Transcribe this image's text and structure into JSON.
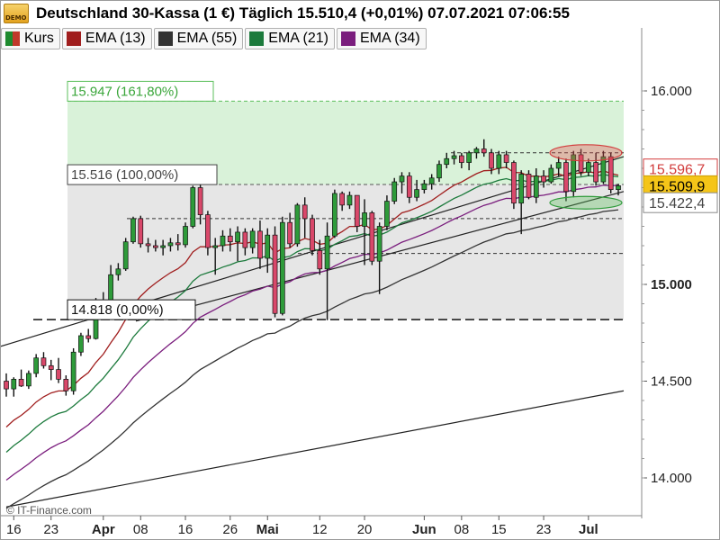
{
  "header": {
    "title": "Deutschland 30-Kassa (1 €) Täglich 15.510,4 (+0,01%) 07.07.2021 07:06:55",
    "badge_icon": "demo-icon"
  },
  "legend": [
    {
      "label": "Kurs",
      "color": "#c0392b",
      "color2": "#1e8a2e"
    },
    {
      "label": "EMA (13)",
      "color": "#a01e1e"
    },
    {
      "label": "EMA (55)",
      "color": "#333333"
    },
    {
      "label": "EMA (21)",
      "color": "#1c7a3c"
    },
    {
      "label": "EMA (34)",
      "color": "#7a1d7d"
    }
  ],
  "watermark": "© IT-Finance.com",
  "fib_levels": [
    {
      "label": "15.947 (161,80%)",
      "value": 15947,
      "color": "#5bbf5b"
    },
    {
      "label": "15.516 (100,00%)",
      "value": 15516,
      "color": "#444444"
    },
    {
      "label": "14.818 (0,00%)",
      "value": 14818,
      "color": "#111111"
    }
  ],
  "price_labels": [
    {
      "text": "15.596,7",
      "value": 15596.7,
      "bg": "#ffffff",
      "color": "#d23c3c",
      "border": "#d23c3c"
    },
    {
      "text": "15.509,9",
      "value": 15509.9,
      "bg": "#f5c518",
      "color": "#000000",
      "border": "#c89b00"
    },
    {
      "text": "15.422,4",
      "value": 15422.4,
      "bg": "#ffffff",
      "color": "#444444",
      "border": "#888888"
    }
  ],
  "chart_data": {
    "type": "candlestick",
    "title": "Deutschland 30-Kassa (1 €) Täglich",
    "ylim": [
      13920,
      16100
    ],
    "y_ticks": [
      {
        "label": "16.000",
        "value": 16000,
        "bold": false
      },
      {
        "label": "15.000",
        "value": 15000,
        "bold": true
      },
      {
        "label": "14.500",
        "value": 14500,
        "bold": false
      },
      {
        "label": "14.000",
        "value": 14000,
        "bold": false
      }
    ],
    "x_ticks": [
      {
        "label": "16",
        "index": 1,
        "month": false
      },
      {
        "label": "23",
        "index": 6,
        "month": false
      },
      {
        "label": "Apr",
        "index": 13,
        "month": true
      },
      {
        "label": "08",
        "index": 18,
        "month": false
      },
      {
        "label": "16",
        "index": 24,
        "month": false
      },
      {
        "label": "26",
        "index": 30,
        "month": false
      },
      {
        "label": "Mai",
        "index": 35,
        "month": true
      },
      {
        "label": "12",
        "index": 42,
        "month": false
      },
      {
        "label": "20",
        "index": 48,
        "month": false
      },
      {
        "label": "Jun",
        "index": 56,
        "month": true
      },
      {
        "label": "08",
        "index": 61,
        "month": false
      },
      {
        "label": "15",
        "index": 66,
        "month": false
      },
      {
        "label": "23",
        "index": 72,
        "month": false
      },
      {
        "label": "Jul",
        "index": 78,
        "month": true
      }
    ],
    "candles": [
      [
        14500,
        14540,
        14420,
        14460
      ],
      [
        14460,
        14520,
        14420,
        14510
      ],
      [
        14510,
        14560,
        14470,
        14475
      ],
      [
        14475,
        14555,
        14460,
        14540
      ],
      [
        14540,
        14640,
        14520,
        14620
      ],
      [
        14620,
        14650,
        14565,
        14580
      ],
      [
        14580,
        14610,
        14505,
        14560
      ],
      [
        14560,
        14620,
        14490,
        14510
      ],
      [
        14510,
        14530,
        14425,
        14450
      ],
      [
        14450,
        14670,
        14430,
        14650
      ],
      [
        14650,
        14750,
        14630,
        14735
      ],
      [
        14735,
        14770,
        14700,
        14720
      ],
      [
        14720,
        14930,
        14715,
        14910
      ],
      [
        14910,
        14960,
        14880,
        14900
      ],
      [
        14900,
        15100,
        14890,
        15050
      ],
      [
        15050,
        15110,
        15020,
        15080
      ],
      [
        15080,
        15240,
        15070,
        15220
      ],
      [
        15220,
        15350,
        15210,
        15340
      ],
      [
        15340,
        15355,
        15190,
        15210
      ],
      [
        15210,
        15240,
        15165,
        15200
      ],
      [
        15200,
        15230,
        15170,
        15190
      ],
      [
        15190,
        15230,
        15150,
        15200
      ],
      [
        15200,
        15240,
        15170,
        15215
      ],
      [
        15215,
        15260,
        15175,
        15205
      ],
      [
        15205,
        15320,
        15190,
        15300
      ],
      [
        15300,
        15510,
        15290,
        15500
      ],
      [
        15500,
        15520,
        15310,
        15360
      ],
      [
        15360,
        15380,
        15150,
        15190
      ],
      [
        15190,
        15240,
        15050,
        15200
      ],
      [
        15200,
        15280,
        15170,
        15250
      ],
      [
        15250,
        15290,
        15170,
        15220
      ],
      [
        15220,
        15300,
        15120,
        15270
      ],
      [
        15270,
        15290,
        15150,
        15190
      ],
      [
        15190,
        15290,
        15160,
        15275
      ],
      [
        15275,
        15330,
        15080,
        15135
      ],
      [
        15135,
        15290,
        15060,
        15255
      ],
      [
        15255,
        15300,
        14830,
        14850
      ],
      [
        14850,
        15350,
        14840,
        15320
      ],
      [
        15320,
        15370,
        15190,
        15210
      ],
      [
        15210,
        15420,
        15195,
        15410
      ],
      [
        15410,
        15450,
        15240,
        15340
      ],
      [
        15340,
        15360,
        15150,
        15175
      ],
      [
        15175,
        15230,
        15050,
        15080
      ],
      [
        15080,
        15320,
        14815,
        15250
      ],
      [
        15250,
        15490,
        15240,
        15470
      ],
      [
        15470,
        15480,
        15380,
        15410
      ],
      [
        15410,
        15480,
        15390,
        15460
      ],
      [
        15460,
        15460,
        15270,
        15300
      ],
      [
        15300,
        15440,
        15100,
        15370
      ],
      [
        15370,
        15380,
        15100,
        15120
      ],
      [
        15120,
        15320,
        14950,
        15300
      ],
      [
        15300,
        15460,
        15280,
        15430
      ],
      [
        15430,
        15550,
        15415,
        15530
      ],
      [
        15530,
        15580,
        15470,
        15560
      ],
      [
        15560,
        15580,
        15420,
        15450
      ],
      [
        15450,
        15540,
        15430,
        15490
      ],
      [
        15490,
        15540,
        15470,
        15520
      ],
      [
        15520,
        15570,
        15490,
        15550
      ],
      [
        15550,
        15640,
        15530,
        15620
      ],
      [
        15620,
        15680,
        15600,
        15650
      ],
      [
        15650,
        15690,
        15620,
        15665
      ],
      [
        15665,
        15680,
        15600,
        15630
      ],
      [
        15630,
        15690,
        15590,
        15680
      ],
      [
        15680,
        15710,
        15650,
        15700
      ],
      [
        15700,
        15750,
        15660,
        15680
      ],
      [
        15680,
        15700,
        15570,
        15600
      ],
      [
        15600,
        15690,
        15570,
        15670
      ],
      [
        15670,
        15690,
        15600,
        15630
      ],
      [
        15630,
        15640,
        15390,
        15420
      ],
      [
        15420,
        15590,
        15260,
        15570
      ],
      [
        15570,
        15590,
        15440,
        15450
      ],
      [
        15450,
        15600,
        15420,
        15560
      ],
      [
        15560,
        15590,
        15500,
        15530
      ],
      [
        15530,
        15620,
        15520,
        15600
      ],
      [
        15600,
        15660,
        15560,
        15630
      ],
      [
        15630,
        15650,
        15430,
        15480
      ],
      [
        15480,
        15690,
        15450,
        15670
      ],
      [
        15670,
        15700,
        15560,
        15580
      ],
      [
        15580,
        15650,
        15560,
        15630
      ],
      [
        15630,
        15680,
        15510,
        15530
      ],
      [
        15530,
        15690,
        15520,
        15660
      ],
      [
        15660,
        15680,
        15470,
        15490
      ],
      [
        15490,
        15520,
        15460,
        15509.9
      ]
    ],
    "ema_seeds": [
      {
        "name": "EMA (13)",
        "period": 13,
        "color": "#a01e1e",
        "seed": 14230
      },
      {
        "name": "EMA (21)",
        "period": 21,
        "color": "#1c7a3c",
        "seed": 14100
      },
      {
        "name": "EMA (34)",
        "period": 34,
        "color": "#7a1d7d",
        "seed": 13960
      },
      {
        "name": "EMA (55)",
        "period": 55,
        "color": "#333333",
        "seed": 13820
      }
    ]
  }
}
